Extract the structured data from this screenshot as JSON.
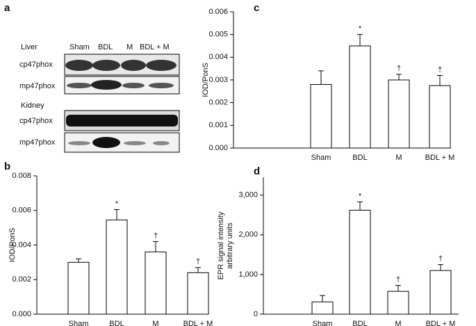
{
  "panel_a": {
    "label": "a",
    "liver": "Liver",
    "columns": [
      "Sham",
      "BDL",
      "M",
      "BDL + M"
    ],
    "liver_rows": [
      "cp47phox",
      "mp47phox"
    ],
    "kidney": "Kidney",
    "kidney_rows": [
      "cp47phox",
      "mp47phox"
    ]
  },
  "chart_data": [
    {
      "type": "bar",
      "label": "b",
      "ylabel": [
        "IOD/PonS"
      ],
      "categories": [
        "Sham",
        "BDL",
        "M",
        "BDL + M"
      ],
      "values": [
        0.003,
        0.00545,
        0.0036,
        0.0024
      ],
      "errors": [
        0.0002,
        0.0006,
        0.0006,
        0.0003
      ],
      "annotations": [
        null,
        "*",
        "†",
        "†"
      ],
      "ylim": [
        0,
        0.008
      ],
      "yticks": [
        {
          "value": 0,
          "label": "0.000"
        },
        {
          "value": 0.002,
          "label": "0.002"
        },
        {
          "value": 0.004,
          "label": "0.004"
        },
        {
          "value": 0.006,
          "label": "0.006"
        },
        {
          "value": 0.008,
          "label": "0.008"
        }
      ],
      "color": "#ffffff"
    },
    {
      "type": "bar",
      "label": "c",
      "ylabel": [
        "IOD/PonS"
      ],
      "categories": [
        "Sham",
        "BDL",
        "M",
        "BDL + M"
      ],
      "values": [
        0.0028,
        0.0045,
        0.003,
        0.00275
      ],
      "errors": [
        0.0006,
        0.0005,
        0.00025,
        0.00045
      ],
      "annotations": [
        null,
        "*",
        "†",
        "†"
      ],
      "ylim": [
        0,
        0.006
      ],
      "yticks": [
        {
          "value": 0,
          "label": "0.000"
        },
        {
          "value": 0.001,
          "label": "0.001"
        },
        {
          "value": 0.002,
          "label": "0.002"
        },
        {
          "value": 0.003,
          "label": "0.003"
        },
        {
          "value": 0.004,
          "label": "0.004"
        },
        {
          "value": 0.005,
          "label": "0.005"
        },
        {
          "value": 0.006,
          "label": "0.006"
        }
      ],
      "color": "#ffffff"
    },
    {
      "type": "bar",
      "label": "d",
      "ylabel": [
        "EPR signal intensity",
        "arbitrary units"
      ],
      "categories": [
        "Sham",
        "BDL",
        "M",
        "BDL + M"
      ],
      "values": [
        310,
        2620,
        575,
        1100
      ],
      "errors": [
        160,
        210,
        150,
        150
      ],
      "annotations": [
        null,
        "*",
        "†",
        "†"
      ],
      "ylim": [
        0,
        3450
      ],
      "yticks": [
        0,
        {
          "value": 1000,
          "label": "1,000"
        },
        {
          "value": 2000,
          "label": "2,000"
        },
        {
          "value": 3000,
          "label": "3,000"
        }
      ],
      "color": "#ffffff"
    }
  ]
}
